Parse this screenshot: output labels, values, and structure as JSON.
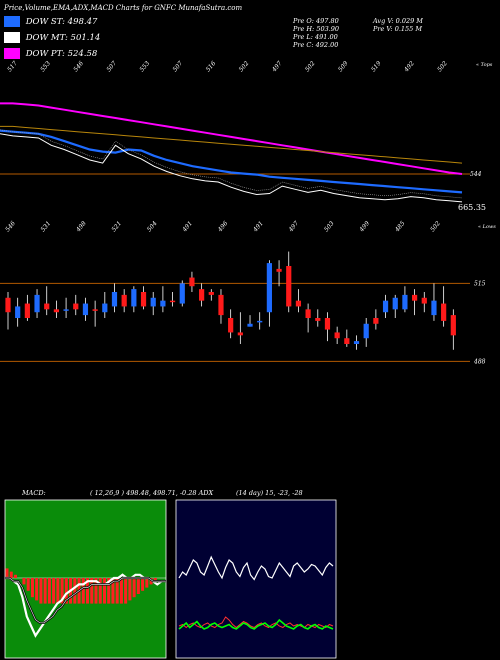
{
  "header": {
    "title": "Price,Volume,EMA,ADX,MACD Charts for GNFC MunafaSutra.com"
  },
  "legend": [
    {
      "label": "DOW ST: 498.47",
      "color": "#1e6bff"
    },
    {
      "label": "DOW MT: 501.14",
      "color": "#ffffff"
    },
    {
      "label": "DOW PT: 524.58",
      "color": "#ff00ff"
    }
  ],
  "stats": {
    "pre_o": "Pre   O: 497.80",
    "pre_h": "Pre   H: 503.90",
    "pre_l": "Pre   L: 491.00",
    "pre_c": "Pre   C: 492.00",
    "avg_v": "Avg V: 0.029 M",
    "pre_v": "Pre   V: 0.155 M"
  },
  "chart_data": [
    {
      "type": "line",
      "name": "ema_panel",
      "top_labels": [
        "517",
        "553",
        "546",
        "507",
        "553",
        "507",
        "516",
        "502",
        "497",
        "502",
        "509",
        "519",
        "492",
        "502"
      ],
      "top_right_label": "« Tops",
      "bottom_labels": [
        "546",
        "531",
        "498",
        "521",
        "504",
        "491",
        "496",
        "491",
        "497",
        "503",
        "499",
        "485",
        "502"
      ],
      "bottom_right_label": "« Lows",
      "right_labels": [
        "544",
        "665.35"
      ],
      "series": [
        {
          "color": "#ff00ff",
          "values": [
            592,
            592,
            591,
            590,
            588,
            586,
            584,
            582,
            580,
            578,
            576,
            574,
            572,
            570,
            568,
            566,
            564,
            562,
            560,
            558,
            556,
            554,
            552,
            550,
            548,
            546,
            544,
            542,
            540,
            538,
            536,
            534,
            532,
            530,
            528,
            526,
            524.6
          ]
        },
        {
          "color": "#b8860b",
          "values": [
            570,
            570,
            569,
            568,
            567,
            566,
            565,
            564,
            563,
            562,
            561,
            560,
            559,
            558,
            557,
            556,
            555,
            554,
            553,
            552,
            551,
            550,
            549,
            548,
            547,
            546,
            545,
            544,
            543,
            542,
            541,
            540,
            539,
            538,
            537,
            536,
            535
          ]
        },
        {
          "color": "#1e6bff",
          "values": [
            566,
            565,
            564,
            563,
            560,
            556,
            552,
            548,
            546,
            545,
            548,
            547,
            542,
            538,
            535,
            532,
            530,
            528,
            526,
            525,
            524,
            522,
            521,
            520,
            519,
            518,
            517,
            516,
            515,
            514,
            513,
            512,
            511,
            510,
            509,
            508,
            507
          ]
        },
        {
          "color": "#ffffff",
          "values": [
            563,
            561,
            560,
            559,
            552,
            548,
            543,
            538,
            535,
            552,
            544,
            539,
            532,
            527,
            523,
            520,
            518,
            517,
            512,
            508,
            505,
            506,
            513,
            510,
            507,
            509,
            506,
            504,
            502,
            501,
            500,
            501,
            503,
            502,
            500,
            499,
            498
          ]
        }
      ]
    },
    {
      "type": "bar",
      "name": "candles",
      "right_labels": [
        "515",
        "488"
      ],
      "candles": [
        {
          "o": 505,
          "c": 510,
          "h": 512,
          "l": 499,
          "up": false
        },
        {
          "o": 503,
          "c": 507,
          "h": 510,
          "l": 500,
          "up": true
        },
        {
          "o": 508,
          "c": 503,
          "h": 511,
          "l": 502,
          "up": false
        },
        {
          "o": 505,
          "c": 511,
          "h": 513,
          "l": 503,
          "up": true
        },
        {
          "o": 508,
          "c": 506,
          "h": 514,
          "l": 504,
          "up": false
        },
        {
          "o": 506,
          "c": 505,
          "h": 509,
          "l": 503,
          "up": false
        },
        {
          "o": 506,
          "c": 506,
          "h": 510,
          "l": 503,
          "up": true
        },
        {
          "o": 506,
          "c": 508,
          "h": 511,
          "l": 504,
          "up": false
        },
        {
          "o": 504,
          "c": 508,
          "h": 510,
          "l": 502,
          "up": true
        },
        {
          "o": 506,
          "c": 506,
          "h": 509,
          "l": 500,
          "up": false
        },
        {
          "o": 505,
          "c": 508,
          "h": 512,
          "l": 503,
          "up": true
        },
        {
          "o": 507,
          "c": 512,
          "h": 515,
          "l": 505,
          "up": true
        },
        {
          "o": 511,
          "c": 507,
          "h": 513,
          "l": 505,
          "up": false
        },
        {
          "o": 507,
          "c": 513,
          "h": 514,
          "l": 505,
          "up": true
        },
        {
          "o": 512,
          "c": 507,
          "h": 514,
          "l": 506,
          "up": false
        },
        {
          "o": 507,
          "c": 510,
          "h": 512,
          "l": 504,
          "up": true
        },
        {
          "o": 507,
          "c": 509,
          "h": 514,
          "l": 505,
          "up": true
        },
        {
          "o": 509,
          "c": 509,
          "h": 512,
          "l": 507,
          "up": false
        },
        {
          "o": 508,
          "c": 515,
          "h": 516,
          "l": 507,
          "up": true
        },
        {
          "o": 517,
          "c": 514,
          "h": 519,
          "l": 512,
          "up": false
        },
        {
          "o": 513,
          "c": 509,
          "h": 515,
          "l": 507,
          "up": false
        },
        {
          "o": 512,
          "c": 511,
          "h": 513,
          "l": 509,
          "up": false
        },
        {
          "o": 511,
          "c": 504,
          "h": 513,
          "l": 501,
          "up": false
        },
        {
          "o": 503,
          "c": 498,
          "h": 506,
          "l": 496,
          "up": false
        },
        {
          "o": 498,
          "c": 497,
          "h": 505,
          "l": 494,
          "up": false
        },
        {
          "o": 500,
          "c": 501,
          "h": 504,
          "l": 500,
          "up": true
        },
        {
          "o": 502,
          "c": 502,
          "h": 505,
          "l": 499,
          "up": true
        },
        {
          "o": 505,
          "c": 522,
          "h": 523,
          "l": 500,
          "up": true
        },
        {
          "o": 520,
          "c": 519,
          "h": 523,
          "l": 514,
          "up": false
        },
        {
          "o": 521,
          "c": 507,
          "h": 526,
          "l": 505,
          "up": false
        },
        {
          "o": 509,
          "c": 507,
          "h": 513,
          "l": 505,
          "up": false
        },
        {
          "o": 506,
          "c": 503,
          "h": 508,
          "l": 498,
          "up": false
        },
        {
          "o": 503,
          "c": 502,
          "h": 506,
          "l": 500,
          "up": false
        },
        {
          "o": 503,
          "c": 499,
          "h": 505,
          "l": 495,
          "up": false
        },
        {
          "o": 498,
          "c": 496,
          "h": 500,
          "l": 494,
          "up": false
        },
        {
          "o": 496,
          "c": 494,
          "h": 499,
          "l": 493,
          "up": false
        },
        {
          "o": 494,
          "c": 495,
          "h": 497,
          "l": 492,
          "up": true
        },
        {
          "o": 496,
          "c": 501,
          "h": 503,
          "l": 493,
          "up": true
        },
        {
          "o": 503,
          "c": 501,
          "h": 506,
          "l": 499,
          "up": false
        },
        {
          "o": 505,
          "c": 509,
          "h": 511,
          "l": 503,
          "up": true
        },
        {
          "o": 506,
          "c": 510,
          "h": 511,
          "l": 503,
          "up": true
        },
        {
          "o": 506,
          "c": 511,
          "h": 514,
          "l": 505,
          "up": true
        },
        {
          "o": 511,
          "c": 509,
          "h": 513,
          "l": 504,
          "up": false
        },
        {
          "o": 510,
          "c": 508,
          "h": 512,
          "l": 505,
          "up": false
        },
        {
          "o": 504,
          "c": 509,
          "h": 515,
          "l": 502,
          "up": true
        },
        {
          "o": 508,
          "c": 502,
          "h": 514,
          "l": 500,
          "up": false
        },
        {
          "o": 504,
          "c": 497,
          "h": 506,
          "l": 492,
          "up": false
        }
      ]
    },
    {
      "type": "area",
      "name": "macd",
      "label": "MACD:",
      "params": "( 12,26,9 ) 498.48, 498.71, -0.28 ADX",
      "hist": [
        3,
        2,
        1,
        0,
        -2,
        -4,
        -6,
        -7,
        -8,
        -8,
        -8,
        -8,
        -8,
        -8,
        -8,
        -8,
        -8,
        -8,
        -8,
        -8,
        -8,
        -8,
        -8,
        -8,
        -8,
        -8,
        -8,
        -8,
        -8,
        -7,
        -6,
        -5,
        -4,
        -3,
        -2,
        -1,
        0,
        0
      ],
      "macd": [
        0,
        0,
        -1,
        -2,
        -6,
        -12,
        -15,
        -18,
        -16,
        -14,
        -12,
        -10,
        -8,
        -7,
        -5,
        -4,
        -3,
        -2,
        -2,
        -1,
        -1,
        -1,
        -2,
        -2,
        -1,
        0,
        0,
        1,
        0,
        0,
        1,
        1,
        0,
        0,
        -1,
        -2,
        -1,
        -1
      ],
      "signal": [
        0,
        0,
        -1,
        -1,
        -3,
        -7,
        -10,
        -13,
        -14,
        -14,
        -13,
        -12,
        -10,
        -9,
        -7,
        -6,
        -5,
        -4,
        -3,
        -3,
        -2,
        -2,
        -2,
        -2,
        -2,
        -1,
        -1,
        0,
        0,
        0,
        0,
        0,
        0,
        0,
        -1,
        -1,
        -1,
        -1
      ]
    },
    {
      "type": "line",
      "name": "adx",
      "params": "(14 day) 15, -23, -28",
      "adx_white": [
        48,
        52,
        50,
        55,
        60,
        58,
        52,
        50,
        56,
        62,
        57,
        52,
        48,
        55,
        60,
        58,
        52,
        49,
        55,
        58,
        50,
        47,
        52,
        56,
        54,
        49,
        48,
        53,
        58,
        55,
        52,
        49,
        56,
        58,
        55,
        52,
        54,
        57,
        56,
        53,
        50,
        55,
        58,
        56
      ],
      "adx_green": [
        14,
        16,
        18,
        15,
        17,
        19,
        16,
        14,
        15,
        17,
        18,
        16,
        15,
        16,
        17,
        15,
        14,
        16,
        18,
        17,
        15,
        14,
        16,
        17,
        18,
        16,
        15,
        17,
        20,
        18,
        16,
        15,
        14,
        16,
        17,
        15,
        14,
        16,
        17,
        15,
        14,
        16,
        15,
        14
      ],
      "adx_red": [
        16,
        17,
        15,
        17,
        18,
        16,
        15,
        17,
        18,
        16,
        15,
        17,
        18,
        22,
        20,
        17,
        15,
        17,
        19,
        18,
        16,
        15,
        17,
        18,
        16,
        15,
        17,
        18,
        16,
        15,
        17,
        18,
        16,
        17,
        16,
        15,
        17,
        16,
        15,
        17,
        16,
        15,
        17,
        16
      ]
    }
  ]
}
